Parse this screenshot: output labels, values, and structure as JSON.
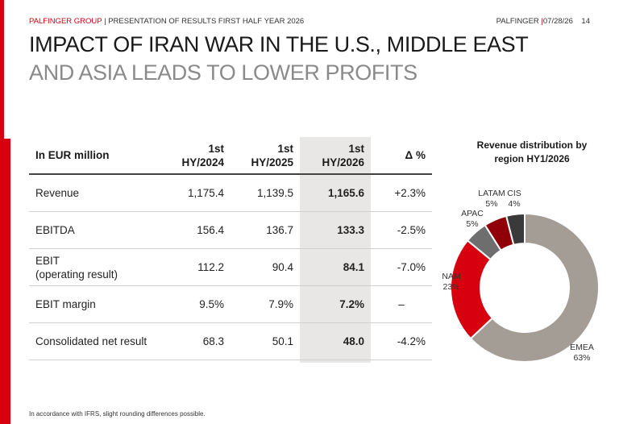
{
  "header": {
    "brand": "PALFINGER GROUP",
    "separator": "|",
    "presentation": "PRESENTATION OF RESULTS FIRST HALF YEAR 2026",
    "company": "PALFINGER",
    "date": "07/28/26",
    "page_number": "14"
  },
  "title": {
    "line1": "IMPACT OF IRAN WAR IN THE U.S., MIDDLE EAST",
    "line2": "AND ASIA LEADS TO LOWER PROFITS"
  },
  "table": {
    "header": {
      "label": "In EUR million",
      "col1_line1": "1st",
      "col1_line2": "HY/2024",
      "col2_line1": "1st",
      "col2_line2": "HY/2025",
      "col3_line1": "1st",
      "col3_line2": "HY/2026",
      "delta": "Δ %"
    },
    "rows": [
      {
        "label": "Revenue",
        "sublabel": "",
        "hy2024": "1,175.4",
        "hy2025": "1,139.5",
        "hy2026": "1,165.6",
        "delta": "+2.3%"
      },
      {
        "label": "EBITDA",
        "sublabel": "",
        "hy2024": "156.4",
        "hy2025": "136.7",
        "hy2026": "133.3",
        "delta": "-2.5%"
      },
      {
        "label": "EBIT",
        "sublabel": "(operating result)",
        "hy2024": "112.2",
        "hy2025": "90.4",
        "hy2026": "84.1",
        "delta": "-7.0%"
      },
      {
        "label": "EBIT margin",
        "sublabel": "",
        "hy2024": "9.5%",
        "hy2025": "7.9%",
        "hy2026": "7.2%",
        "delta": "–"
      },
      {
        "label": "Consolidated net result",
        "sublabel": "",
        "hy2024": "68.3",
        "hy2025": "50.1",
        "hy2026": "48.0",
        "delta": "-4.2%"
      }
    ]
  },
  "chart_data": {
    "type": "pie",
    "title": "Revenue distribution by region HY1/2026",
    "slices": [
      {
        "name": "EMEA",
        "value": 63,
        "label": "63%",
        "color": "#a39d96"
      },
      {
        "name": "NAM",
        "value": 23,
        "label": "23%",
        "color": "#d7000f"
      },
      {
        "name": "APAC",
        "value": 5,
        "label": "5%",
        "color": "#6e6e6e"
      },
      {
        "name": "LATAM",
        "value": 5,
        "label": "5%",
        "color": "#8f0009"
      },
      {
        "name": "CIS",
        "value": 4,
        "label": "4%",
        "color": "#3a3a3a"
      }
    ]
  },
  "footer": {
    "note": "In accordance with IFRS, slight rounding differences possible."
  },
  "colors": {
    "accent": "#d7000f",
    "highlight_column": "#e8e7e5"
  }
}
